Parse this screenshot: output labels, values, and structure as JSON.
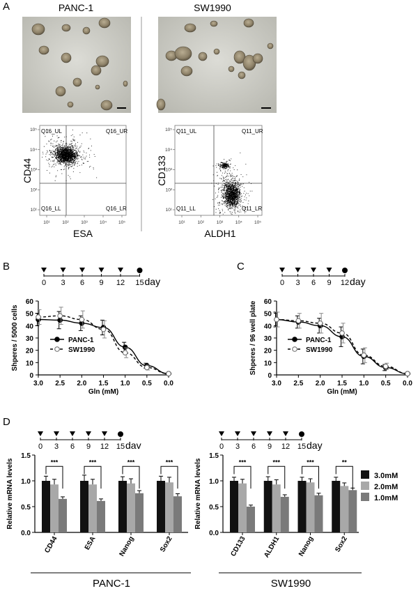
{
  "panel_letters": {
    "a": "A",
    "b": "B",
    "c": "C",
    "d": "D"
  },
  "panel_a": {
    "cell_lines": [
      "PANC-1",
      "SW1990"
    ],
    "flow_left": {
      "y_label": "CD44",
      "x_label": "ESA",
      "quadrants": [
        "Q16_UL",
        "Q16_UR",
        "Q16_LL",
        "Q16_LR"
      ]
    },
    "flow_right": {
      "y_label": "CD133",
      "x_label": "ALDH1",
      "quadrants": [
        "Q11_UL",
        "Q11_UR",
        "Q11_LL",
        "Q11_LR"
      ]
    },
    "decade_labels": [
      "10¹",
      "10²",
      "10³",
      "10⁴",
      "10⁵"
    ]
  },
  "chart_data": [
    {
      "type": "line",
      "id": "B",
      "timeline": {
        "days": [
          "0",
          "3",
          "6",
          "9",
          "12",
          "15"
        ],
        "unit": "day"
      },
      "ylabel": "Shperes / 5000 cells",
      "xlabel": "Gln (mM)",
      "ylim": [
        0,
        60
      ],
      "yticks": [
        "0",
        "10",
        "20",
        "30",
        "40",
        "50",
        "60"
      ],
      "x": [
        3.0,
        2.5,
        2.0,
        1.5,
        1.0,
        0.5,
        0.0
      ],
      "xticks": [
        "3.0",
        "2.5",
        "2.0",
        "1.5",
        "1.0",
        "0.5",
        "0.0"
      ],
      "series": [
        {
          "name": "PANC-1",
          "values": [
            45,
            44.5,
            42,
            38.5,
            22.5,
            7.5,
            1
          ],
          "errors": [
            5,
            7,
            6,
            6,
            4,
            2,
            0.5
          ]
        },
        {
          "name": "SW1990",
          "values": [
            47,
            48,
            45,
            37,
            18,
            6,
            1
          ],
          "errors": [
            6,
            7,
            7,
            7,
            4,
            2,
            0.5
          ]
        }
      ]
    },
    {
      "type": "line",
      "id": "C",
      "timeline": {
        "days": [
          "0",
          "3",
          "6",
          "9",
          "12"
        ],
        "unit": "day"
      },
      "ylabel": "Shperes / 96 well plate",
      "xlabel": "Gln (mM)",
      "ylim": [
        0,
        60
      ],
      "yticks": [
        "0",
        "10",
        "20",
        "30",
        "40",
        "50",
        "60"
      ],
      "x": [
        3.0,
        2.5,
        2.0,
        1.5,
        1.0,
        0.5,
        0.0
      ],
      "xticks": [
        "3.0",
        "2.5",
        "2.0",
        "1.5",
        "1.0",
        "0.5",
        "0.0"
      ],
      "series": [
        {
          "name": "PANC-1",
          "values": [
            45,
            43,
            40,
            31,
            15,
            6,
            1
          ],
          "errors": [
            6,
            5,
            6,
            8,
            6,
            2.5,
            0.5
          ]
        },
        {
          "name": "SW1990",
          "values": [
            45,
            44,
            42,
            34,
            16,
            7,
            1
          ],
          "errors": [
            6,
            6,
            8,
            8,
            6,
            2.5,
            0.5
          ]
        }
      ]
    },
    {
      "type": "bar",
      "id": "D-left",
      "timeline": {
        "days": [
          "0",
          "3",
          "6",
          "9",
          "12",
          "15"
        ],
        "unit": "dav"
      },
      "ylabel": "Relative mRNA levels",
      "ylim": [
        0,
        1.5
      ],
      "yticks": [
        "0.0",
        "0.5",
        "1.0",
        "1.5"
      ],
      "categories": [
        "CD44",
        "ESA",
        "Nanog",
        "Sox2"
      ],
      "significance": [
        "***",
        "***",
        "***",
        "***"
      ],
      "group_label": "PANC-1",
      "series": [
        {
          "name": "3.0mM",
          "values": [
            1.0,
            1.0,
            1.0,
            1.0
          ],
          "errors": [
            0.09,
            0.11,
            0.08,
            0.09
          ]
        },
        {
          "name": "2.0mM",
          "values": [
            0.93,
            0.93,
            0.95,
            0.97
          ],
          "errors": [
            0.1,
            0.1,
            0.09,
            0.1
          ]
        },
        {
          "name": "1.0mM",
          "values": [
            0.65,
            0.61,
            0.76,
            0.7
          ],
          "errors": [
            0.04,
            0.04,
            0.05,
            0.05
          ]
        }
      ]
    },
    {
      "type": "bar",
      "id": "D-right",
      "timeline": {
        "days": [
          "0",
          "3",
          "6",
          "9",
          "12",
          "15"
        ],
        "unit": "day"
      },
      "ylabel": "Relative mRNA levels",
      "ylim": [
        0,
        1.5
      ],
      "yticks": [
        "0.0",
        "0.5",
        "1.0",
        "1.5"
      ],
      "categories": [
        "CD133",
        "ALDH1",
        "Nanog",
        "Sox2"
      ],
      "significance": [
        "***",
        "***",
        "***",
        "**"
      ],
      "group_label": "SW1990",
      "series": [
        {
          "name": "3.0mM",
          "values": [
            1.0,
            1.0,
            1.0,
            1.0
          ],
          "errors": [
            0.07,
            0.08,
            0.07,
            0.07
          ]
        },
        {
          "name": "2.0mM",
          "values": [
            0.95,
            0.93,
            0.97,
            0.9
          ],
          "errors": [
            0.08,
            0.09,
            0.07,
            0.06
          ]
        },
        {
          "name": "1.0mM",
          "values": [
            0.5,
            0.69,
            0.72,
            0.82
          ],
          "errors": [
            0.03,
            0.04,
            0.04,
            0.04
          ]
        }
      ]
    }
  ],
  "legend": {
    "labels": [
      "3.0mM",
      "2.0mM",
      "1.0mM"
    ],
    "colors": [
      "#111111",
      "#a8a8a8",
      "#7a7a7a"
    ]
  }
}
